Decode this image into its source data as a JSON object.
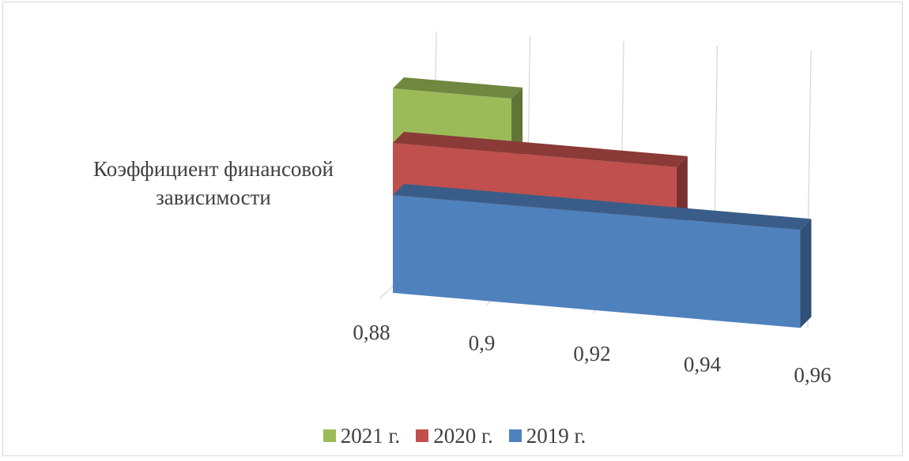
{
  "chart_data": {
    "type": "bar",
    "orientation": "horizontal",
    "style": "3d-perspective",
    "categories": [
      "Коэффициент финансовой зависимости"
    ],
    "category_label_lines": [
      "Коэффициент финансовой",
      "зависимости"
    ],
    "series": [
      {
        "name": "2021 г.",
        "values": [
          0.903
        ],
        "color": "#9BBB59"
      },
      {
        "name": "2020 г.",
        "values": [
          0.935
        ],
        "color": "#C0504D"
      },
      {
        "name": "2019 г.",
        "values": [
          0.959
        ],
        "color": "#4F81BD"
      }
    ],
    "x_ticks": [
      "0,88",
      "0,9",
      "0,92",
      "0,94",
      "0,96"
    ],
    "xlim": [
      0.88,
      0.96
    ],
    "grid": true,
    "legend_position": "bottom"
  }
}
